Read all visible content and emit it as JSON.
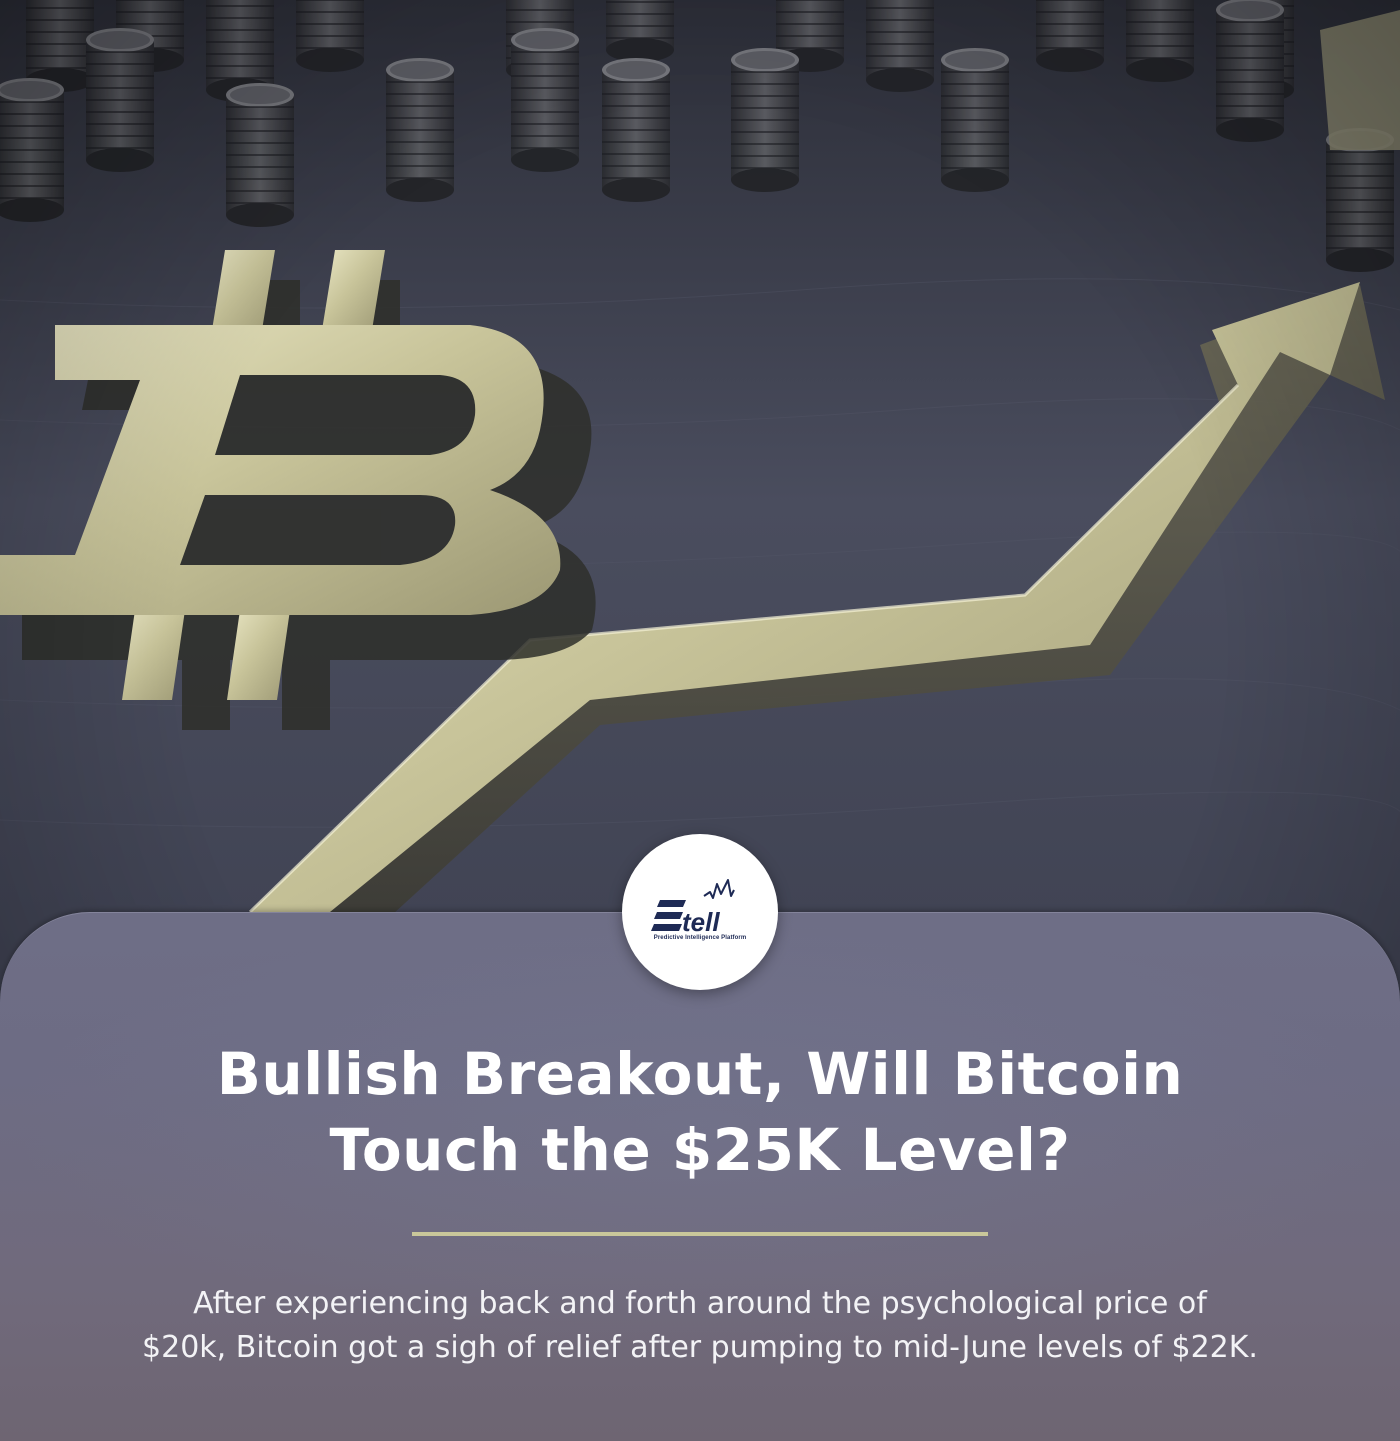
{
  "hero": {
    "icon": "bitcoin-arrow-coins-image"
  },
  "logo": {
    "icon": "etell-logo-icon",
    "wordmark": "tell",
    "tagline": "Predictive Intelligence Platform"
  },
  "article": {
    "headline_line1": "Bullish Breakout, Will Bitcoin",
    "headline_line2": "Touch the $25K Level?",
    "summary_line1": "After experiencing back and forth around the psychological price of",
    "summary_line2": "$20k, Bitcoin got a sigh of relief after pumping to mid-June levels of $22K."
  },
  "colors": {
    "accent_gold": "#c9c79a",
    "card_bg": "#6e6e86",
    "logo_navy": "#1e2a55"
  }
}
